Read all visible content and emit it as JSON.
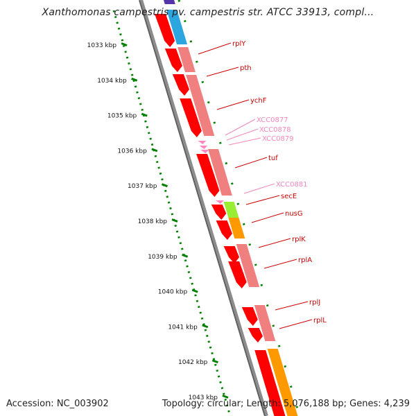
{
  "title": "Xanthomonas campestris pv. campestris str. ATCC 33913, compl...",
  "footer": {
    "accession": "Accession: NC_003902",
    "topology": "Topology: circular; Length: 5,076,188 bp; Genes: 4,239"
  },
  "colors": {
    "backbone": "#8c8c8c",
    "ruler": "#008000",
    "tick_label": "#111111",
    "gene_strong": "#ff0000",
    "gene_light": "#f08080",
    "gene_rna": "#ff88c0",
    "gene_blue": "#2da6e0",
    "gene_lime": "#99ee33",
    "gene_orange": "#ff9900",
    "gene_purple": "#5533aa",
    "label_named": "#cc0000",
    "label_hypo": "#ee88bb"
  },
  "ticks": [
    "1033 kbp",
    "1034 kbp",
    "1035 kbp",
    "1036 kbp",
    "1037 kbp",
    "1038 kbp",
    "1039 kbp",
    "1040 kbp",
    "1041 kbp",
    "1042 kbp",
    "1043 kbp"
  ],
  "gene_labels": [
    {
      "text": "rplY",
      "kind": "named"
    },
    {
      "text": "pth",
      "kind": "named"
    },
    {
      "text": "ychF",
      "kind": "named"
    },
    {
      "text": "XCC0877",
      "kind": "hypo"
    },
    {
      "text": "XCC0878",
      "kind": "hypo"
    },
    {
      "text": "XCC0879",
      "kind": "hypo"
    },
    {
      "text": "tuf",
      "kind": "named"
    },
    {
      "text": "XCC0881",
      "kind": "hypo"
    },
    {
      "text": "secE",
      "kind": "named"
    },
    {
      "text": "nusG",
      "kind": "named"
    },
    {
      "text": "rplK",
      "kind": "named"
    },
    {
      "text": "rplA",
      "kind": "named"
    },
    {
      "text": "rplJ",
      "kind": "named"
    },
    {
      "text": "rplL",
      "kind": "named"
    }
  ]
}
